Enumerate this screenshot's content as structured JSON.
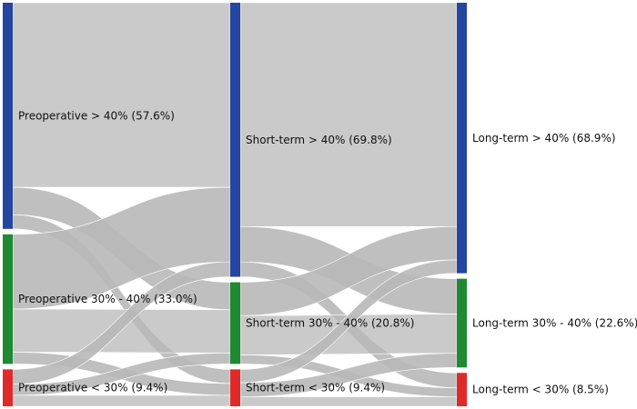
{
  "chart_data": {
    "type": "sankey",
    "stages": [
      "Preoperative",
      "Short-term",
      "Long-term"
    ],
    "nodes": [
      {
        "id": "pre_gt40",
        "stage": 0,
        "label": "Preoperative > 40% (57.6%)",
        "value": 57.6,
        "color": "#2446a0"
      },
      {
        "id": "pre_30_40",
        "stage": 0,
        "label": "Preoperative 30% - 40% (33.0%)",
        "value": 33.0,
        "color": "#1f8a33"
      },
      {
        "id": "pre_lt30",
        "stage": 0,
        "label": "Preoperative < 30% (9.4%)",
        "value": 9.4,
        "color": "#e02a2a"
      },
      {
        "id": "st_gt40",
        "stage": 1,
        "label": "Short-term > 40% (69.8%)",
        "value": 69.8,
        "color": "#2446a0"
      },
      {
        "id": "st_30_40",
        "stage": 1,
        "label": "Short-term 30% - 40% (20.8%)",
        "value": 20.8,
        "color": "#1f8a33"
      },
      {
        "id": "st_lt30",
        "stage": 1,
        "label": "Short-term < 30% (9.4%)",
        "value": 9.4,
        "color": "#e02a2a"
      },
      {
        "id": "lt_gt40",
        "stage": 2,
        "label": "Long-term > 40% (68.9%)",
        "value": 68.9,
        "color": "#2446a0"
      },
      {
        "id": "lt_30_40",
        "stage": 2,
        "label": "Long-term 30% - 40% (22.6%)",
        "value": 22.6,
        "color": "#1f8a33"
      },
      {
        "id": "lt_lt30",
        "stage": 2,
        "label": "Long-term < 30% (8.5%)",
        "value": 8.5,
        "color": "#e02a2a"
      }
    ],
    "links": [
      {
        "source": "pre_gt40",
        "target": "st_gt40",
        "value": 47.0
      },
      {
        "source": "pre_gt40",
        "target": "st_30_40",
        "value": 7.0
      },
      {
        "source": "pre_gt40",
        "target": "st_lt30",
        "value": 3.6
      },
      {
        "source": "pre_30_40",
        "target": "st_gt40",
        "value": 19.0
      },
      {
        "source": "pre_30_40",
        "target": "st_30_40",
        "value": 11.0
      },
      {
        "source": "pre_30_40",
        "target": "st_lt30",
        "value": 3.0
      },
      {
        "source": "pre_lt30",
        "target": "st_gt40",
        "value": 3.8
      },
      {
        "source": "pre_lt30",
        "target": "st_30_40",
        "value": 2.8
      },
      {
        "source": "pre_lt30",
        "target": "st_lt30",
        "value": 2.8
      },
      {
        "source": "st_gt40",
        "target": "lt_gt40",
        "value": 57.0
      },
      {
        "source": "st_gt40",
        "target": "lt_30_40",
        "value": 9.0
      },
      {
        "source": "st_gt40",
        "target": "lt_lt30",
        "value": 3.8
      },
      {
        "source": "st_30_40",
        "target": "lt_gt40",
        "value": 8.5
      },
      {
        "source": "st_30_40",
        "target": "lt_30_40",
        "value": 10.0
      },
      {
        "source": "st_30_40",
        "target": "lt_lt30",
        "value": 2.3
      },
      {
        "source": "st_lt30",
        "target": "lt_gt40",
        "value": 3.4
      },
      {
        "source": "st_lt30",
        "target": "lt_30_40",
        "value": 3.6
      },
      {
        "source": "st_lt30",
        "target": "lt_lt30",
        "value": 2.4
      }
    ],
    "colors": {
      "link": "#b8b8b8",
      "link_highlight": "#9a9a9a"
    }
  }
}
